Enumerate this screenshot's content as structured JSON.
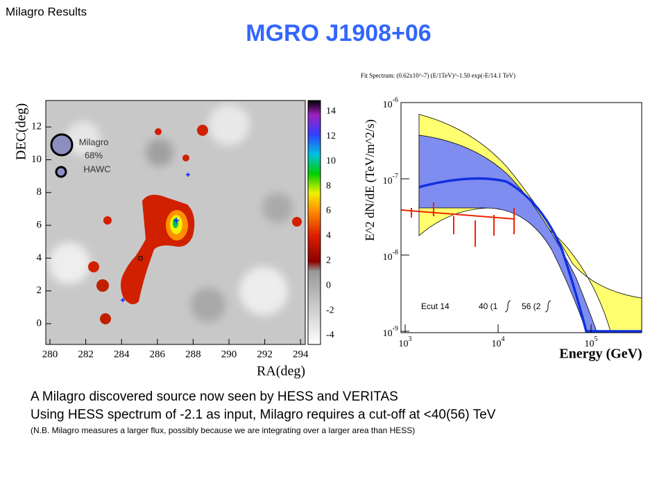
{
  "header": {
    "section": "Milagro Results",
    "title": "MGRO J1908+06"
  },
  "skymap": {
    "y_label": "DEC(deg)",
    "x_label": "RA(deg)",
    "x_ticks": [
      "280",
      "282",
      "284",
      "286",
      "288",
      "290",
      "292",
      "294"
    ],
    "y_ticks": [
      "0",
      "2",
      "4",
      "6",
      "8",
      "10",
      "12"
    ],
    "colorbar_ticks": [
      "-4",
      "-2",
      "0",
      "2",
      "4",
      "6",
      "8",
      "10",
      "12",
      "14"
    ],
    "legend": {
      "milagro": "Milagro",
      "percent": "68%",
      "hawc": "HAWC"
    }
  },
  "spectrum": {
    "fit": "Fit Spectrum: (0.62x10^-7) (E/1TeV)^-1.50 exp(-E/14.1 TeV)",
    "y_label": "E^2 dN/dE (TeV/m^2/s)",
    "x_label": "Energy (GeV)",
    "x_ticks": [
      {
        "base": "10",
        "exp": "3"
      },
      {
        "base": "10",
        "exp": "4"
      },
      {
        "base": "10",
        "exp": "5"
      }
    ],
    "y_ticks": [
      {
        "base": "10",
        "exp": "-6"
      },
      {
        "base": "10",
        "exp": "-7"
      },
      {
        "base": "10",
        "exp": "-8"
      },
      {
        "base": "10",
        "exp": "-9"
      }
    ],
    "annotations": [
      "Ecut 14",
      "40 (1",
      "56 (2"
    ]
  },
  "body": {
    "lines": [
      "A Milagro discovered source now seen by HESS and VERITAS",
      "Using HESS spectrum of -2.1 as input, Milagro requires a cut-off at <40(56) TeV",
      "(N.B. Milagro measures a larger flux, possibly because we are integrating over a larger area than HESS)"
    ]
  }
}
